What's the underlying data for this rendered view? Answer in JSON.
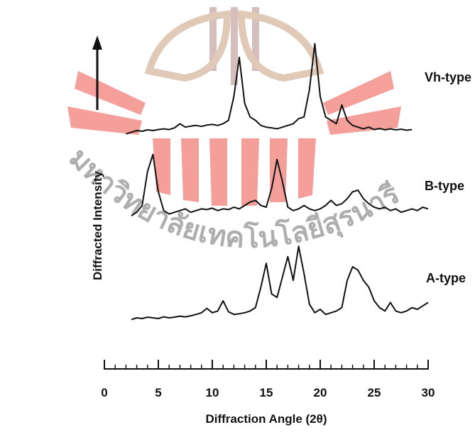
{
  "chart_data": {
    "type": "line",
    "watermark": "มหาวิทยาลัยเทคโนโลยีสุรนารี",
    "x_label": "Diffraction Angle (2θ)",
    "y_label": "Diffracted Intensity",
    "xlim": [
      0,
      30
    ],
    "ylim": [
      0,
      100
    ],
    "xticks": [
      0,
      5,
      10,
      15,
      20,
      25,
      30
    ],
    "xminorticks": [
      1,
      2,
      3,
      4,
      6,
      7,
      8,
      9,
      11,
      12,
      13,
      14,
      16,
      17,
      18,
      19,
      21,
      22,
      23,
      24,
      26,
      27,
      28,
      29
    ],
    "series": [
      {
        "name": "Vh-type",
        "color": "#111111",
        "x": [
          2,
          2.5,
          3,
          3.5,
          4,
          4.5,
          5,
          5.5,
          6,
          6.5,
          7,
          7.5,
          8,
          8.5,
          9,
          9.5,
          10,
          10.5,
          11,
          11.5,
          12,
          12.5,
          13,
          13.5,
          14,
          14.5,
          15,
          15.5,
          16,
          16.5,
          17,
          17.5,
          18,
          18.5,
          19,
          19.5,
          20,
          20.5,
          21,
          21.5,
          22,
          22.5,
          23,
          23.5,
          24,
          24.5,
          25,
          25.5,
          26,
          26.5,
          27,
          27.5,
          28,
          28.5
        ],
        "values": [
          69,
          69.5,
          70,
          69.8,
          70.2,
          70,
          70.3,
          70.5,
          70.3,
          70.8,
          72,
          71,
          71.3,
          71.5,
          71.2,
          71.6,
          71.8,
          71.5,
          72,
          73,
          80,
          91.5,
          78,
          74,
          73,
          71.5,
          71,
          70.8,
          70.5,
          71,
          71.5,
          72,
          73.5,
          74,
          82,
          95.5,
          80,
          74,
          73,
          72,
          77.5,
          73,
          71.5,
          71,
          70.5,
          71,
          70.3,
          70.6,
          70.2,
          70.5,
          70.2,
          70.4,
          70.1,
          70.3
        ]
      },
      {
        "name": "B-type",
        "color": "#111111",
        "x": [
          2.5,
          3,
          3.5,
          4,
          4.5,
          5,
          5.5,
          6,
          6.5,
          7,
          7.5,
          8,
          8.5,
          9,
          9.5,
          10,
          10.5,
          11,
          11.5,
          12,
          12.5,
          13,
          13.5,
          14,
          14.5,
          15,
          15.5,
          16,
          16.5,
          17,
          17.5,
          18,
          18.5,
          19,
          19.5,
          20,
          20.5,
          21,
          21.5,
          22,
          22.5,
          23,
          23.5,
          24,
          24.5,
          25,
          25.5,
          26,
          26.5,
          27,
          27.5,
          28,
          28.5,
          29,
          29.5,
          30
        ],
        "values": [
          45,
          46,
          48,
          58,
          63,
          52,
          46.5,
          45.5,
          46,
          46.5,
          47,
          46,
          46.5,
          47,
          46.8,
          47.2,
          46.5,
          47,
          46.8,
          47.5,
          47,
          48,
          49,
          49.5,
          48,
          47.5,
          53,
          61.5,
          55,
          47.5,
          46.5,
          47,
          48,
          47,
          46.5,
          47,
          48,
          49.5,
          48,
          48.5,
          50,
          52,
          52.5,
          50,
          48.5,
          47.5,
          47,
          47.5,
          46.5,
          47,
          46,
          46.5,
          47,
          46.5,
          47.5,
          47
        ]
      },
      {
        "name": "A-type",
        "color": "#111111",
        "x": [
          2.5,
          3,
          3.5,
          4,
          4.5,
          5,
          5.5,
          6,
          6.5,
          7,
          7.5,
          8,
          8.5,
          9,
          9.5,
          10,
          10.5,
          11,
          11.5,
          12,
          12.5,
          13,
          13.5,
          14,
          14.5,
          15,
          15.5,
          16,
          16.5,
          17,
          17.5,
          18,
          18.5,
          19,
          19.5,
          20,
          20.5,
          21,
          21.5,
          22,
          22.5,
          23,
          23.5,
          24,
          24.5,
          25,
          25.5,
          26,
          26.5,
          27,
          27.5,
          28,
          28.5,
          29,
          29.5,
          30
        ],
        "values": [
          14.5,
          15,
          14.8,
          15.2,
          15,
          14.8,
          15.3,
          15,
          15.2,
          15.5,
          15.3,
          15.6,
          16,
          16.5,
          17.8,
          16.5,
          17,
          20,
          16.8,
          16,
          16.2,
          16.5,
          17,
          18,
          24,
          31,
          22,
          21,
          27,
          33,
          26,
          36,
          28,
          19,
          16.5,
          17.5,
          16,
          16.5,
          17,
          18,
          26,
          30,
          29,
          26,
          24,
          20,
          18,
          17,
          19.5,
          17,
          16.5,
          17,
          18,
          17.5,
          18.5,
          19.5
        ]
      }
    ]
  }
}
